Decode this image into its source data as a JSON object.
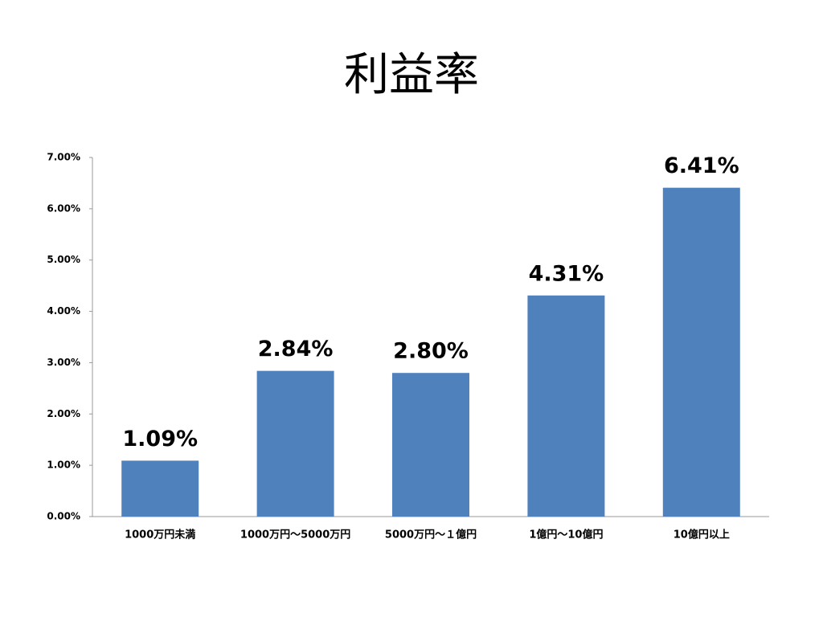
{
  "chart_data": {
    "type": "bar",
    "title": "利益率",
    "categories": [
      "1000万円未満",
      "1000万円～5000万円",
      "5000万円～１億円",
      "1億円～10億円",
      "10億円以上"
    ],
    "values": [
      1.09,
      2.84,
      2.8,
      4.31,
      6.41
    ],
    "value_labels": [
      "1.09%",
      "2.84%",
      "2.80%",
      "4.31%",
      "6.41%"
    ],
    "color": "#4f81bd",
    "ylim": [
      0,
      7
    ],
    "yticks": [
      {
        "value": 0,
        "label": "0.00%"
      },
      {
        "value": 1,
        "label": "1.00%"
      },
      {
        "value": 2,
        "label": "2.00%"
      },
      {
        "value": 3,
        "label": "3.00%"
      },
      {
        "value": 4,
        "label": "4.00%"
      },
      {
        "value": 5,
        "label": "5.00%"
      },
      {
        "value": 6,
        "label": "6.00%"
      },
      {
        "value": 7,
        "label": "7.00%"
      }
    ],
    "grid": false
  }
}
